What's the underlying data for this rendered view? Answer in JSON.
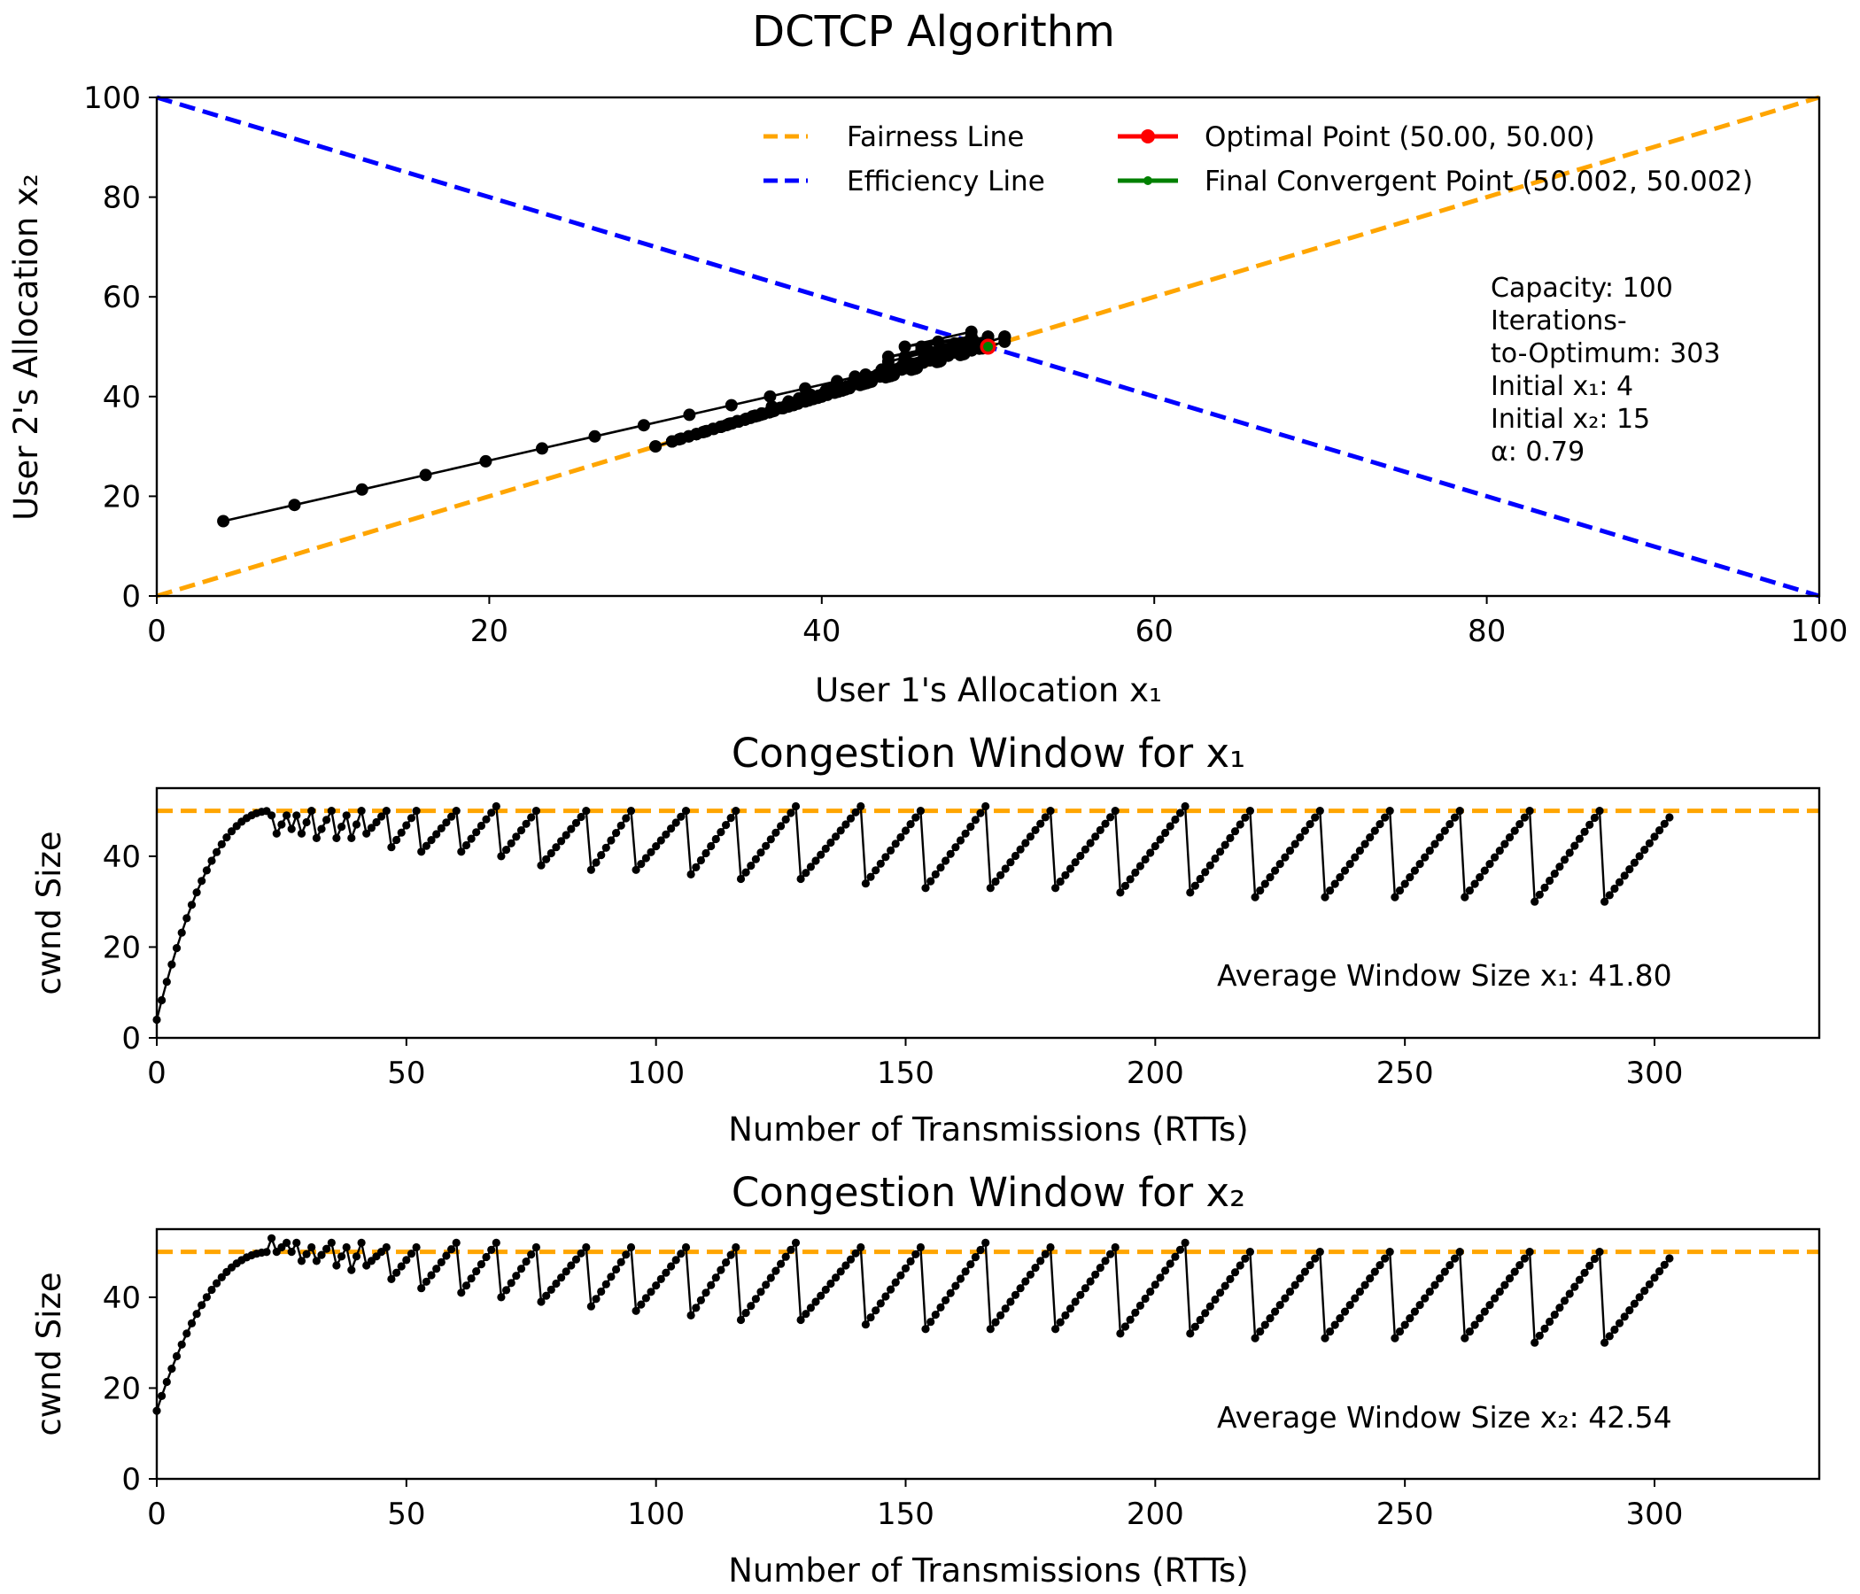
{
  "figure": {
    "title": "DCTCP Algorithm"
  },
  "colors": {
    "fairness": "#FFA500",
    "efficiency": "#0000FF",
    "optimal": "#FF0000",
    "final": "#008000",
    "trajectory": "#000000"
  },
  "chart_data": [
    {
      "type": "line",
      "id": "phase",
      "title": "",
      "xlabel": "User 1's Allocation x₁",
      "ylabel": "User 2's Allocation x₂",
      "xlim": [
        0,
        100
      ],
      "ylim": [
        0,
        100
      ],
      "xticks": [
        0,
        20,
        40,
        60,
        80,
        100
      ],
      "yticks": [
        0,
        20,
        40,
        60,
        80,
        100
      ],
      "legend_position": "upper-right",
      "legend": {
        "fairness": "Fairness Line",
        "efficiency": "Efficiency Line",
        "optimal": "Optimal Point (50.00, 50.00)",
        "final": "Final Convergent Point (50.002, 50.002)"
      },
      "fairness_line": {
        "x": [
          0,
          100
        ],
        "y": [
          0,
          100
        ]
      },
      "efficiency_line": {
        "x": [
          0,
          100
        ],
        "y": [
          100,
          0
        ]
      },
      "optimal_point": [
        50.0,
        50.0
      ],
      "final_point": [
        50.002,
        50.002
      ],
      "info": {
        "capacity": "Capacity: 100",
        "iterations_1": "Iterations-",
        "iterations_2": "to-Optimum: 303",
        "initial_x1": "Initial x₁: 4",
        "initial_x2": "Initial x₂: 15",
        "alpha": "α: 0.79"
      }
    },
    {
      "type": "line",
      "id": "cwnd_x1",
      "title": "Congestion Window for x₁",
      "xlabel": "Number of Transmissions (RTTs)",
      "ylabel": "cwnd Size",
      "xlim": [
        0,
        333
      ],
      "ylim": [
        0,
        55
      ],
      "xticks": [
        0,
        50,
        100,
        150,
        200,
        250,
        300
      ],
      "yticks": [
        0,
        20,
        40
      ],
      "reference_line": 50,
      "average_label": "Average Window Size x₁: 41.80",
      "start": 4,
      "ramp_end_rtt": 23,
      "peak_rtts": [
        23,
        26,
        28,
        31,
        35,
        38,
        41,
        46,
        52,
        60,
        68,
        76,
        86,
        95,
        106,
        116,
        128,
        141,
        153,
        166,
        179,
        192,
        206,
        219,
        233,
        247,
        261,
        275,
        289
      ],
      "peak_values": [
        49,
        49,
        49,
        50,
        50,
        49,
        50,
        50,
        50,
        50,
        51,
        50,
        50,
        50,
        50,
        50,
        51,
        51,
        50,
        51,
        50,
        50,
        51,
        50,
        50,
        50,
        50,
        50,
        50
      ],
      "trough_values": [
        45,
        46,
        45,
        44,
        44,
        44,
        45,
        42,
        41,
        41,
        40,
        38,
        37,
        37,
        36,
        35,
        35,
        34,
        33,
        33,
        33,
        32,
        32,
        31,
        31,
        31,
        31,
        30,
        30
      ],
      "end_rtt": 303,
      "end_value": 50
    },
    {
      "type": "line",
      "id": "cwnd_x2",
      "title": "Congestion Window for x₂",
      "xlabel": "Number of Transmissions (RTTs)",
      "ylabel": "cwnd Size",
      "xlim": [
        0,
        333
      ],
      "ylim": [
        0,
        55
      ],
      "xticks": [
        0,
        50,
        100,
        150,
        200,
        250,
        300
      ],
      "yticks": [
        0,
        20,
        40
      ],
      "reference_line": 50,
      "average_label": "Average Window Size x₂: 42.54",
      "start": 15,
      "ramp_end_rtt": 23,
      "peak_rtts": [
        23,
        26,
        28,
        31,
        35,
        38,
        41,
        46,
        52,
        60,
        68,
        76,
        86,
        95,
        106,
        116,
        128,
        141,
        153,
        166,
        179,
        192,
        206,
        219,
        233,
        247,
        261,
        275,
        289
      ],
      "peak_values": [
        53,
        52,
        52,
        51,
        52,
        51,
        52,
        51,
        51,
        52,
        52,
        51,
        51,
        51,
        51,
        51,
        52,
        51,
        51,
        52,
        51,
        51,
        52,
        50,
        50,
        50,
        50,
        50,
        50
      ],
      "trough_values": [
        50,
        50,
        48,
        48,
        47,
        46,
        47,
        44,
        42,
        41,
        40,
        39,
        38,
        37,
        36,
        35,
        35,
        34,
        33,
        33,
        33,
        32,
        32,
        31,
        31,
        31,
        31,
        30,
        30
      ],
      "end_rtt": 303,
      "end_value": 50
    }
  ]
}
